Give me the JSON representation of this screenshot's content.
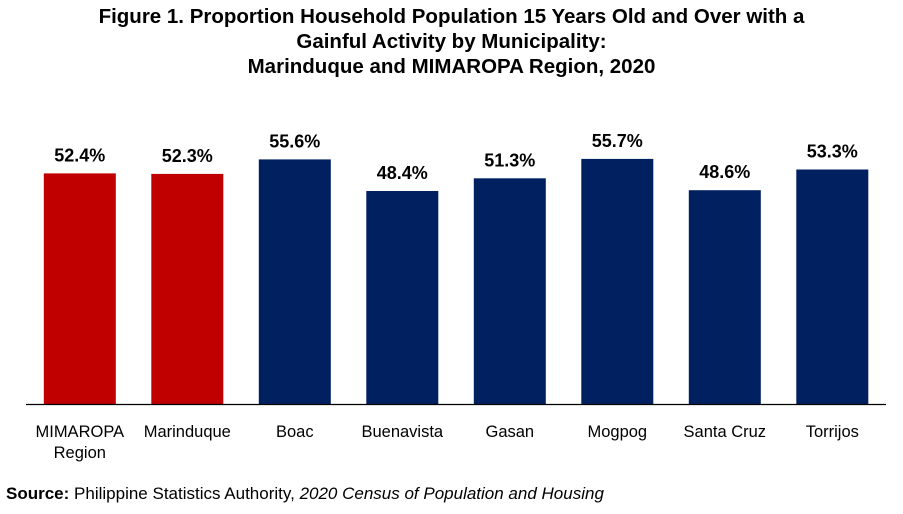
{
  "title_lines": [
    "Figure 1. Proportion Household Population 15 Years Old and Over with a",
    "Gainful Activity by Municipality:",
    "Marinduque and MIMAROPA Region, 2020"
  ],
  "source": {
    "label": "Source:",
    "agency": "Philippine Statistics Authority,",
    "publication": "2020 Census of Population and Housing"
  },
  "colors": {
    "highlight": "#C00000",
    "default": "#002060"
  },
  "chart_data": {
    "type": "bar",
    "title": "Figure 1. Proportion Household Population 15 Years Old and Over with a Gainful Activity by Municipality: Marinduque and MIMAROPA Region, 2020",
    "xlabel": "",
    "ylabel": "",
    "ylim": [
      0,
      70
    ],
    "grid": false,
    "categories": [
      [
        "MIMAROPA",
        "Region"
      ],
      [
        "Marinduque"
      ],
      [
        "Boac"
      ],
      [
        "Buenavista"
      ],
      [
        "Gasan"
      ],
      [
        "Mogpog"
      ],
      [
        "Santa Cruz"
      ],
      [
        "Torrijos"
      ]
    ],
    "values": [
      52.4,
      52.3,
      55.6,
      48.4,
      51.3,
      55.7,
      48.6,
      53.3
    ],
    "data_labels": [
      "52.4%",
      "52.3%",
      "55.6%",
      "48.4%",
      "51.3%",
      "55.7%",
      "48.6%",
      "53.3%"
    ],
    "highlighted": [
      true,
      true,
      false,
      false,
      false,
      false,
      false,
      false
    ]
  }
}
